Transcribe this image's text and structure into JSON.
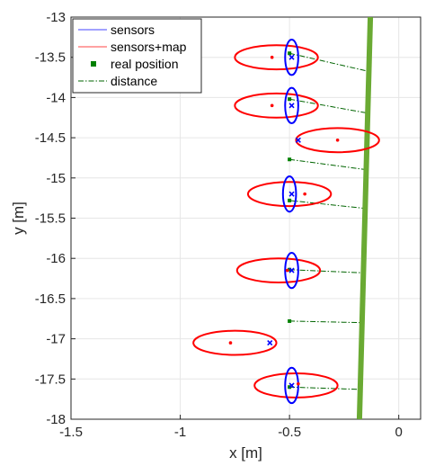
{
  "chart_data": {
    "type": "scatter",
    "xlabel": "x [m]",
    "ylabel": "y [m]",
    "xlim": [
      -1.5,
      0.1
    ],
    "ylim": [
      -18,
      -13
    ],
    "xticks": [
      -1.5,
      -1,
      -0.5,
      0
    ],
    "yticks": [
      -13,
      -13.5,
      -14,
      -14.5,
      -15,
      -15.5,
      -16,
      -16.5,
      -17,
      -17.5,
      -18
    ],
    "xtick_labels": [
      "-1.5",
      "-1",
      "-0.5",
      "0"
    ],
    "ytick_labels": [
      "-13",
      "-13.5",
      "-14",
      "-14.5",
      "-15",
      "-15.5",
      "-16",
      "-16.5",
      "-17",
      "-17.5",
      "-18"
    ],
    "grid": true,
    "legend_position": "top-left",
    "colors": {
      "sensors": "#0000ff",
      "sensors_map": "#ff0000",
      "real_position": "#008000",
      "distance": "#006400",
      "wall": "#6aaa33"
    },
    "legend": [
      {
        "label": "sensors",
        "style": "line",
        "color": "#6a6aff"
      },
      {
        "label": "sensors+map",
        "style": "line",
        "color": "#ff6a6a"
      },
      {
        "label": "real position",
        "style": "square",
        "color": "#008000"
      },
      {
        "label": "distance",
        "style": "dashdot",
        "color": "#006400"
      }
    ],
    "wall_line": {
      "x": [
        -0.18,
        -0.13
      ],
      "y": [
        -18,
        -13
      ]
    },
    "sensors_ellipses": [
      {
        "cx": -0.49,
        "cy": -13.5,
        "rx": 0.03,
        "ry": 0.22
      },
      {
        "cx": -0.49,
        "cy": -14.1,
        "rx": 0.03,
        "ry": 0.22
      },
      {
        "cx": -0.5,
        "cy": -15.2,
        "rx": 0.03,
        "ry": 0.22
      },
      {
        "cx": -0.49,
        "cy": -16.15,
        "rx": 0.03,
        "ry": 0.22
      },
      {
        "cx": -0.49,
        "cy": -17.58,
        "rx": 0.03,
        "ry": 0.22
      }
    ],
    "sensors_map_ellipses": [
      {
        "cx": -0.56,
        "cy": -13.5,
        "rx": 0.19,
        "ry": 0.15
      },
      {
        "cx": -0.56,
        "cy": -14.1,
        "rx": 0.19,
        "ry": 0.15
      },
      {
        "cx": -0.28,
        "cy": -14.53,
        "rx": 0.19,
        "ry": 0.15
      },
      {
        "cx": -0.5,
        "cy": -15.2,
        "rx": 0.19,
        "ry": 0.15
      },
      {
        "cx": -0.55,
        "cy": -16.15,
        "rx": 0.19,
        "ry": 0.15
      },
      {
        "cx": -0.75,
        "cy": -17.05,
        "rx": 0.19,
        "ry": 0.15
      },
      {
        "cx": -0.47,
        "cy": -17.58,
        "rx": 0.19,
        "ry": 0.15
      }
    ],
    "sensors_points": [
      [
        -0.49,
        -13.5
      ],
      [
        -0.49,
        -14.1
      ],
      [
        -0.46,
        -14.53
      ],
      [
        -0.49,
        -15.2
      ],
      [
        -0.49,
        -16.15
      ],
      [
        -0.59,
        -17.05
      ],
      [
        -0.49,
        -17.58
      ]
    ],
    "sensors_map_points": [
      [
        -0.58,
        -13.5
      ],
      [
        -0.58,
        -14.1
      ],
      [
        -0.28,
        -14.53
      ],
      [
        -0.43,
        -15.2
      ],
      [
        -0.51,
        -16.15
      ],
      [
        -0.77,
        -17.05
      ],
      [
        -0.46,
        -17.56
      ]
    ],
    "real_positions": [
      [
        -0.5,
        -13.45
      ],
      [
        -0.5,
        -14.02
      ],
      [
        -0.5,
        -14.77
      ],
      [
        -0.5,
        -15.28
      ],
      [
        -0.5,
        -16.14
      ],
      [
        -0.5,
        -16.78
      ],
      [
        -0.5,
        -17.6
      ]
    ],
    "distance_segments": [
      {
        "from": [
          -0.5,
          -13.45
        ],
        "to": [
          -0.13,
          -13.68
        ]
      },
      {
        "from": [
          -0.5,
          -14.02
        ],
        "to": [
          -0.13,
          -14.2
        ]
      },
      {
        "from": [
          -0.5,
          -14.77
        ],
        "to": [
          -0.14,
          -14.9
        ]
      },
      {
        "from": [
          -0.5,
          -15.28
        ],
        "to": [
          -0.15,
          -15.38
        ]
      },
      {
        "from": [
          -0.5,
          -16.14
        ],
        "to": [
          -0.16,
          -16.18
        ]
      },
      {
        "from": [
          -0.5,
          -16.78
        ],
        "to": [
          -0.16,
          -16.8
        ]
      },
      {
        "from": [
          -0.5,
          -17.6
        ],
        "to": [
          -0.17,
          -17.63
        ]
      }
    ]
  }
}
